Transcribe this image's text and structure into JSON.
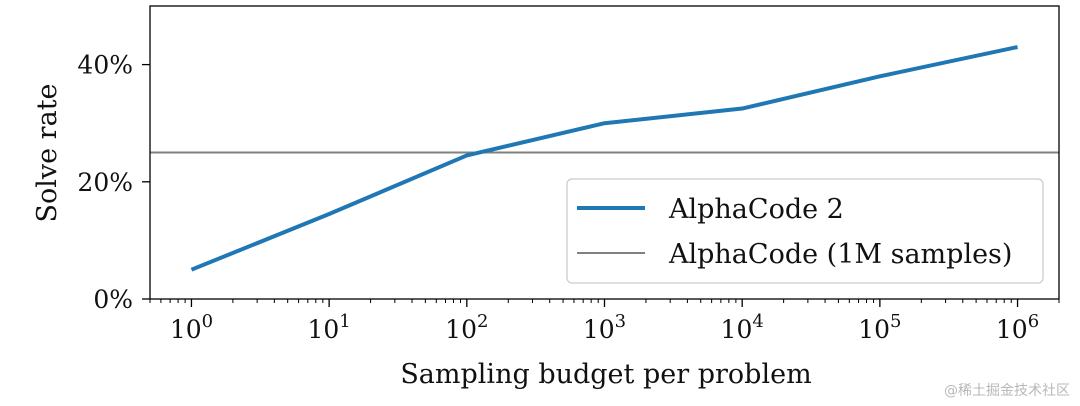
{
  "chart_data": {
    "type": "line",
    "xscale": "log",
    "xlabel": "Sampling budget per problem",
    "ylabel": "Solve rate",
    "xlim": [
      0.5,
      2000000
    ],
    "ylim": [
      0,
      50
    ],
    "x_ticks": [
      {
        "value": 1,
        "base": "10",
        "exp": "0"
      },
      {
        "value": 10,
        "base": "10",
        "exp": "1"
      },
      {
        "value": 100,
        "base": "10",
        "exp": "2"
      },
      {
        "value": 1000,
        "base": "10",
        "exp": "3"
      },
      {
        "value": 10000,
        "base": "10",
        "exp": "4"
      },
      {
        "value": 100000,
        "base": "10",
        "exp": "5"
      },
      {
        "value": 1000000,
        "base": "10",
        "exp": "6"
      }
    ],
    "y_ticks": [
      {
        "value": 0,
        "label": "0%"
      },
      {
        "value": 20,
        "label": "20%"
      },
      {
        "value": 40,
        "label": "40%"
      }
    ],
    "series": [
      {
        "name": "AlphaCode 2",
        "color": "#1f77b4",
        "x": [
          1,
          10,
          100,
          1000,
          10000,
          100000,
          1000000
        ],
        "y": [
          5,
          14.5,
          24.5,
          30,
          32.5,
          38,
          43
        ]
      }
    ],
    "reference_lines": [
      {
        "name": "AlphaCode (1M samples)",
        "color": "#808080",
        "y": 25
      }
    ],
    "legend": {
      "placement": "lower-right"
    },
    "grid": false
  },
  "watermark": "@稀土掘金技术社区"
}
